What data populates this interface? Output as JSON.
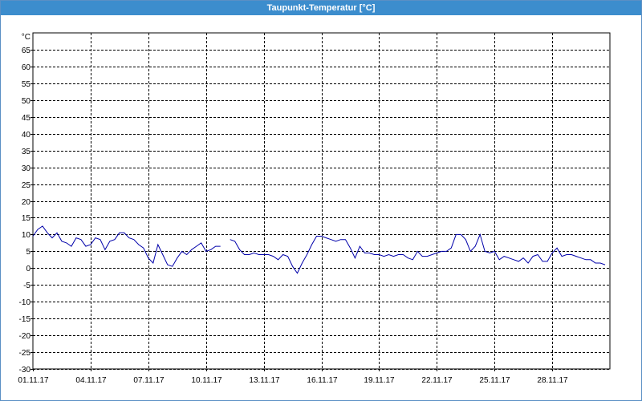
{
  "window": {
    "title": "Taupunkt-Temperatur [°C]"
  },
  "chart_data": {
    "type": "line",
    "title": "Taupunkt-Temperatur [°C]",
    "ylabel": "°C",
    "xlabel": "",
    "ylim": [
      -30,
      70
    ],
    "yticks": [
      65,
      60,
      55,
      50,
      45,
      40,
      35,
      30,
      25,
      20,
      15,
      10,
      5,
      0,
      -5,
      -10,
      -15,
      -20,
      -25,
      -30
    ],
    "xlim": [
      "2017-11-01",
      "2017-12-01"
    ],
    "xtick_labels": [
      "01.11.17",
      "04.11.17",
      "07.11.17",
      "10.11.17",
      "13.11.17",
      "16.11.17",
      "19.11.17",
      "22.11.17",
      "25.11.17",
      "28.11.17"
    ],
    "xtick_dates": [
      "2017-11-01",
      "2017-11-04",
      "2017-11-07",
      "2017-11-10",
      "2017-11-13",
      "2017-11-16",
      "2017-11-19",
      "2017-11-22",
      "2017-11-25",
      "2017-11-28"
    ],
    "grid": true,
    "line_color": "#0000aa",
    "series": [
      {
        "x": [
          "2017-11-01 00:00",
          "2017-11-01 06:00",
          "2017-11-01 12:00",
          "2017-11-01 18:00",
          "2017-11-02 00:00",
          "2017-11-02 06:00",
          "2017-11-02 12:00",
          "2017-11-02 18:00",
          "2017-11-03 00:00",
          "2017-11-03 06:00",
          "2017-11-03 12:00",
          "2017-11-03 18:00",
          "2017-11-04 00:00",
          "2017-11-04 06:00",
          "2017-11-04 12:00",
          "2017-11-04 18:00",
          "2017-11-05 00:00",
          "2017-11-05 06:00",
          "2017-11-05 12:00",
          "2017-11-05 18:00",
          "2017-11-06 00:00",
          "2017-11-06 06:00",
          "2017-11-06 12:00",
          "2017-11-06 18:00",
          "2017-11-07 00:00",
          "2017-11-07 06:00",
          "2017-11-07 12:00",
          "2017-11-07 18:00",
          "2017-11-08 00:00",
          "2017-11-08 06:00",
          "2017-11-08 12:00",
          "2017-11-08 18:00",
          "2017-11-09 00:00",
          "2017-11-09 06:00",
          "2017-11-09 12:00",
          "2017-11-09 18:00",
          "2017-11-10 00:00",
          "2017-11-10 06:00",
          "2017-11-10 12:00",
          "2017-11-10 18:00",
          "2017-11-11 00:00",
          "2017-11-11 06:00",
          "2017-11-11 12:00",
          "2017-11-11 18:00",
          "2017-11-12 00:00",
          "2017-11-12 06:00",
          "2017-11-12 12:00",
          "2017-11-12 18:00",
          "2017-11-13 00:00",
          "2017-11-13 06:00",
          "2017-11-13 12:00",
          "2017-11-13 18:00",
          "2017-11-14 00:00",
          "2017-11-14 06:00",
          "2017-11-14 12:00",
          "2017-11-14 18:00",
          "2017-11-15 00:00",
          "2017-11-15 06:00",
          "2017-11-15 12:00",
          "2017-11-15 18:00",
          "2017-11-16 00:00",
          "2017-11-16 06:00",
          "2017-11-16 12:00",
          "2017-11-16 18:00",
          "2017-11-17 00:00",
          "2017-11-17 06:00",
          "2017-11-17 12:00",
          "2017-11-17 18:00",
          "2017-11-18 00:00",
          "2017-11-18 06:00",
          "2017-11-18 12:00",
          "2017-11-18 18:00",
          "2017-11-19 00:00",
          "2017-11-19 06:00",
          "2017-11-19 12:00",
          "2017-11-19 18:00",
          "2017-11-20 00:00",
          "2017-11-20 06:00",
          "2017-11-20 12:00",
          "2017-11-20 18:00",
          "2017-11-21 00:00",
          "2017-11-21 06:00",
          "2017-11-21 12:00",
          "2017-11-21 18:00",
          "2017-11-22 00:00",
          "2017-11-22 06:00",
          "2017-11-22 12:00",
          "2017-11-22 18:00",
          "2017-11-23 00:00",
          "2017-11-23 06:00",
          "2017-11-23 12:00",
          "2017-11-23 18:00",
          "2017-11-24 00:00",
          "2017-11-24 06:00",
          "2017-11-24 12:00",
          "2017-11-24 18:00",
          "2017-11-25 00:00",
          "2017-11-25 06:00",
          "2017-11-25 12:00",
          "2017-11-25 18:00",
          "2017-11-26 00:00",
          "2017-11-26 06:00",
          "2017-11-26 12:00",
          "2017-11-26 18:00",
          "2017-11-27 00:00",
          "2017-11-27 06:00",
          "2017-11-27 12:00",
          "2017-11-27 18:00",
          "2017-11-28 00:00",
          "2017-11-28 06:00",
          "2017-11-28 12:00",
          "2017-11-28 18:00",
          "2017-11-29 00:00",
          "2017-11-29 06:00",
          "2017-11-29 12:00",
          "2017-11-29 18:00",
          "2017-11-30 00:00",
          "2017-11-30 06:00",
          "2017-11-30 12:00",
          "2017-11-30 18:00"
        ],
        "y": [
          9.5,
          11.5,
          12.5,
          10.5,
          9,
          10.5,
          8,
          7.5,
          6.5,
          9,
          8.5,
          6.5,
          7,
          9,
          8.5,
          5.5,
          8,
          8.5,
          10.5,
          10.5,
          9,
          8.5,
          7,
          6,
          3,
          1.5,
          7,
          4,
          1,
          0.5,
          3,
          5,
          4,
          5.5,
          6.5,
          7.5,
          5,
          5.5,
          6.5,
          6.5,
          null,
          8.5,
          8,
          5.5,
          4,
          4,
          4.5,
          4,
          4,
          4,
          3.5,
          2.5,
          4,
          3.5,
          0.5,
          -1.5,
          1.5,
          4,
          7,
          9.5,
          9.5,
          9,
          8.5,
          8,
          8.5,
          8.5,
          6,
          3,
          6.5,
          4.5,
          4.5,
          4,
          4,
          3.5,
          4,
          3.5,
          4,
          4,
          3,
          2.5,
          5,
          3.5,
          3.5,
          4,
          4.5,
          5,
          5,
          6,
          10,
          10,
          8.5,
          5,
          6.5,
          10,
          5,
          4.5,
          5,
          2.5,
          3.5,
          3,
          2.5,
          2,
          3,
          1.5,
          3.5,
          4,
          2,
          2,
          4.5,
          6,
          3.5,
          4,
          4,
          3.5,
          3,
          2.5,
          2.5,
          1.5,
          1.5,
          1
        ]
      }
    ]
  }
}
